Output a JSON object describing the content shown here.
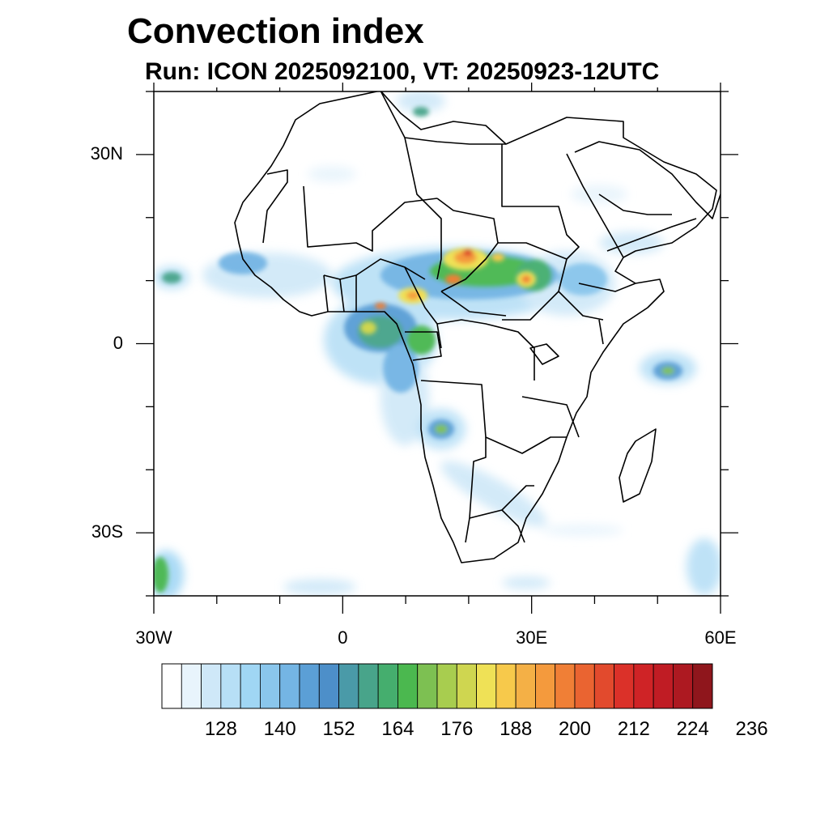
{
  "title": "Convection index",
  "subtitle": "Run: ICON 2025092100,  VT: 20250923-12UTC",
  "map": {
    "lon_range": [
      -30,
      60
    ],
    "lat_range": [
      -40,
      40
    ],
    "lat_ticks": [
      {
        "lat": 30,
        "label": "30N"
      },
      {
        "lat": 0,
        "label": "0"
      },
      {
        "lat": -30,
        "label": "30S"
      }
    ],
    "lon_ticks": [
      {
        "lon": -30,
        "label": "30W"
      },
      {
        "lon": 0,
        "label": "0"
      },
      {
        "lon": 30,
        "label": "30E"
      },
      {
        "lon": 60,
        "label": "60E"
      }
    ]
  },
  "colorbar": {
    "levels_labeled": [
      "128",
      "140",
      "152",
      "164",
      "176",
      "188",
      "200",
      "212",
      "224",
      "236"
    ],
    "colors": [
      "#ffffff",
      "#e8f4fc",
      "#cfe8f8",
      "#b7dff6",
      "#a0d6f4",
      "#8ac6ec",
      "#74b5e4",
      "#5b9fd6",
      "#4d8fc9",
      "#4a9aa8",
      "#48a48a",
      "#45ae6e",
      "#4bb84f",
      "#7dc052",
      "#a8cd4f",
      "#cfd650",
      "#efe156",
      "#f7c94b",
      "#f4b046",
      "#f49a3d",
      "#f07f36",
      "#ea6431",
      "#e24a2d",
      "#db3129",
      "#cf2326",
      "#c01c24",
      "#ad1921",
      "#8f161c"
    ]
  }
}
